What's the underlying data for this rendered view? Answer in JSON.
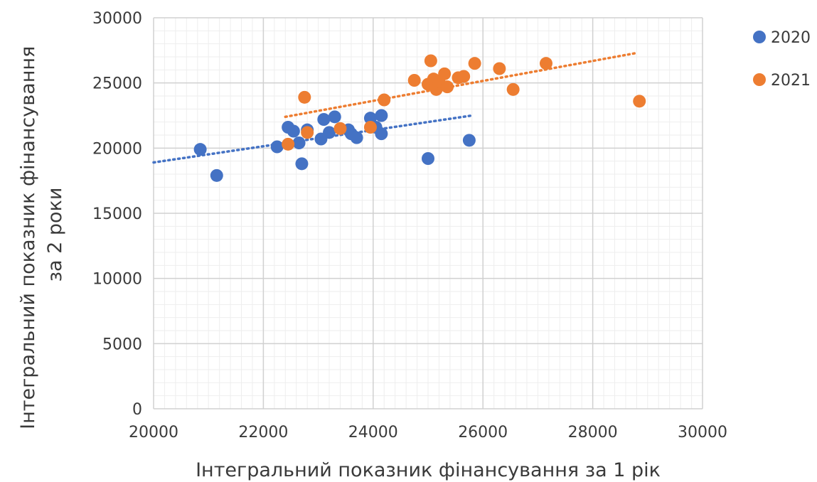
{
  "chart_data": {
    "type": "scatter",
    "xlabel": "Інтегральний показник фінансування за 1 рік",
    "ylabel_lines": [
      "Інтегральний показник фінансування",
      "за 2 роки"
    ],
    "xlim": [
      20000,
      30000
    ],
    "ylim": [
      0,
      30000
    ],
    "x_ticks": [
      20000,
      22000,
      24000,
      26000,
      28000,
      30000
    ],
    "x_tick_labels": [
      "20000",
      "22000",
      "24000",
      "26000",
      "28000",
      "30000"
    ],
    "y_ticks": [
      0,
      5000,
      10000,
      15000,
      20000,
      25000,
      30000
    ],
    "y_tick_labels": [
      "0",
      "5000",
      "10000",
      "15000",
      "20000",
      "25000",
      "30000"
    ],
    "grid": true,
    "legend_position": "top-right",
    "series": [
      {
        "name": "2020",
        "color": "#4472c4",
        "trendline": {
          "style": "dotted",
          "x": [
            20000,
            25800
          ],
          "y": [
            18900,
            22500
          ]
        },
        "points": [
          {
            "x": 20850,
            "y": 19900
          },
          {
            "x": 21150,
            "y": 17900
          },
          {
            "x": 22250,
            "y": 20100
          },
          {
            "x": 22450,
            "y": 21600
          },
          {
            "x": 22550,
            "y": 21300
          },
          {
            "x": 22650,
            "y": 20400
          },
          {
            "x": 22700,
            "y": 18800
          },
          {
            "x": 22800,
            "y": 21400
          },
          {
            "x": 23050,
            "y": 20700
          },
          {
            "x": 23100,
            "y": 22200
          },
          {
            "x": 23200,
            "y": 21200
          },
          {
            "x": 23300,
            "y": 22400
          },
          {
            "x": 23550,
            "y": 21400
          },
          {
            "x": 23600,
            "y": 21100
          },
          {
            "x": 23700,
            "y": 20800
          },
          {
            "x": 23950,
            "y": 22300
          },
          {
            "x": 24050,
            "y": 21600
          },
          {
            "x": 24150,
            "y": 22500
          },
          {
            "x": 24150,
            "y": 21100
          },
          {
            "x": 25000,
            "y": 19200
          },
          {
            "x": 25750,
            "y": 20600
          }
        ]
      },
      {
        "name": "2021",
        "color": "#ed7d31",
        "trendline": {
          "style": "dotted",
          "x": [
            22400,
            28800
          ],
          "y": [
            22400,
            27300
          ]
        },
        "points": [
          {
            "x": 22450,
            "y": 20300
          },
          {
            "x": 22750,
            "y": 23900
          },
          {
            "x": 22800,
            "y": 21200
          },
          {
            "x": 23400,
            "y": 21500
          },
          {
            "x": 23950,
            "y": 21600
          },
          {
            "x": 24200,
            "y": 23700
          },
          {
            "x": 24750,
            "y": 25200
          },
          {
            "x": 25000,
            "y": 24900
          },
          {
            "x": 25050,
            "y": 26700
          },
          {
            "x": 25100,
            "y": 25300
          },
          {
            "x": 25150,
            "y": 24500
          },
          {
            "x": 25200,
            "y": 25100
          },
          {
            "x": 25300,
            "y": 25700
          },
          {
            "x": 25350,
            "y": 24700
          },
          {
            "x": 25550,
            "y": 25400
          },
          {
            "x": 25650,
            "y": 25500
          },
          {
            "x": 25850,
            "y": 26500
          },
          {
            "x": 26300,
            "y": 26100
          },
          {
            "x": 26550,
            "y": 24500
          },
          {
            "x": 27150,
            "y": 26500
          },
          {
            "x": 28850,
            "y": 23600
          }
        ]
      }
    ]
  }
}
